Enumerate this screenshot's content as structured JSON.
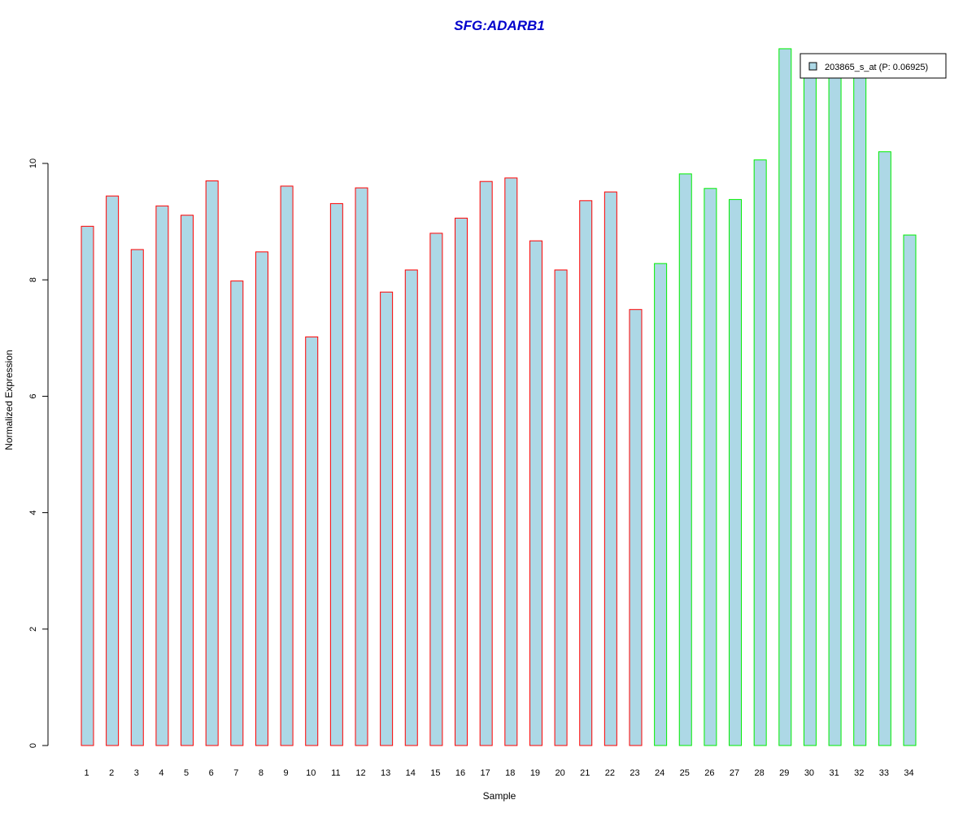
{
  "chart_data": {
    "type": "bar",
    "title": "SFG:ADARB1",
    "xlabel": "Sample",
    "ylabel": "Normalized Expression",
    "categories": [
      "1",
      "2",
      "3",
      "4",
      "5",
      "6",
      "7",
      "8",
      "9",
      "10",
      "11",
      "12",
      "13",
      "14",
      "15",
      "16",
      "17",
      "18",
      "19",
      "20",
      "21",
      "22",
      "23",
      "24",
      "25",
      "26",
      "27",
      "28",
      "29",
      "30",
      "31",
      "32",
      "33",
      "34"
    ],
    "series": [
      {
        "name": "203865_s_at (P: 0.06925)",
        "values": [
          8.92,
          9.44,
          8.52,
          9.27,
          9.11,
          9.7,
          7.98,
          8.48,
          9.61,
          7.02,
          9.31,
          9.58,
          7.79,
          8.17,
          8.8,
          9.06,
          9.69,
          9.75,
          8.67,
          8.17,
          9.36,
          9.51,
          7.49,
          8.28,
          9.82,
          9.57,
          9.38,
          10.06,
          11.97,
          11.6,
          11.6,
          11.6,
          10.2,
          8.77
        ]
      }
    ],
    "groups": [
      {
        "samples": "1-23",
        "border_color": "#ff0000"
      },
      {
        "samples": "24-34",
        "border_color": "#00ee00"
      }
    ],
    "fill_color": "#add8e6",
    "ylim": [
      0,
      12
    ],
    "yticks": [
      "0",
      "2",
      "4",
      "6",
      "8",
      "10"
    ],
    "legend_position": "top-right",
    "grid": false
  }
}
